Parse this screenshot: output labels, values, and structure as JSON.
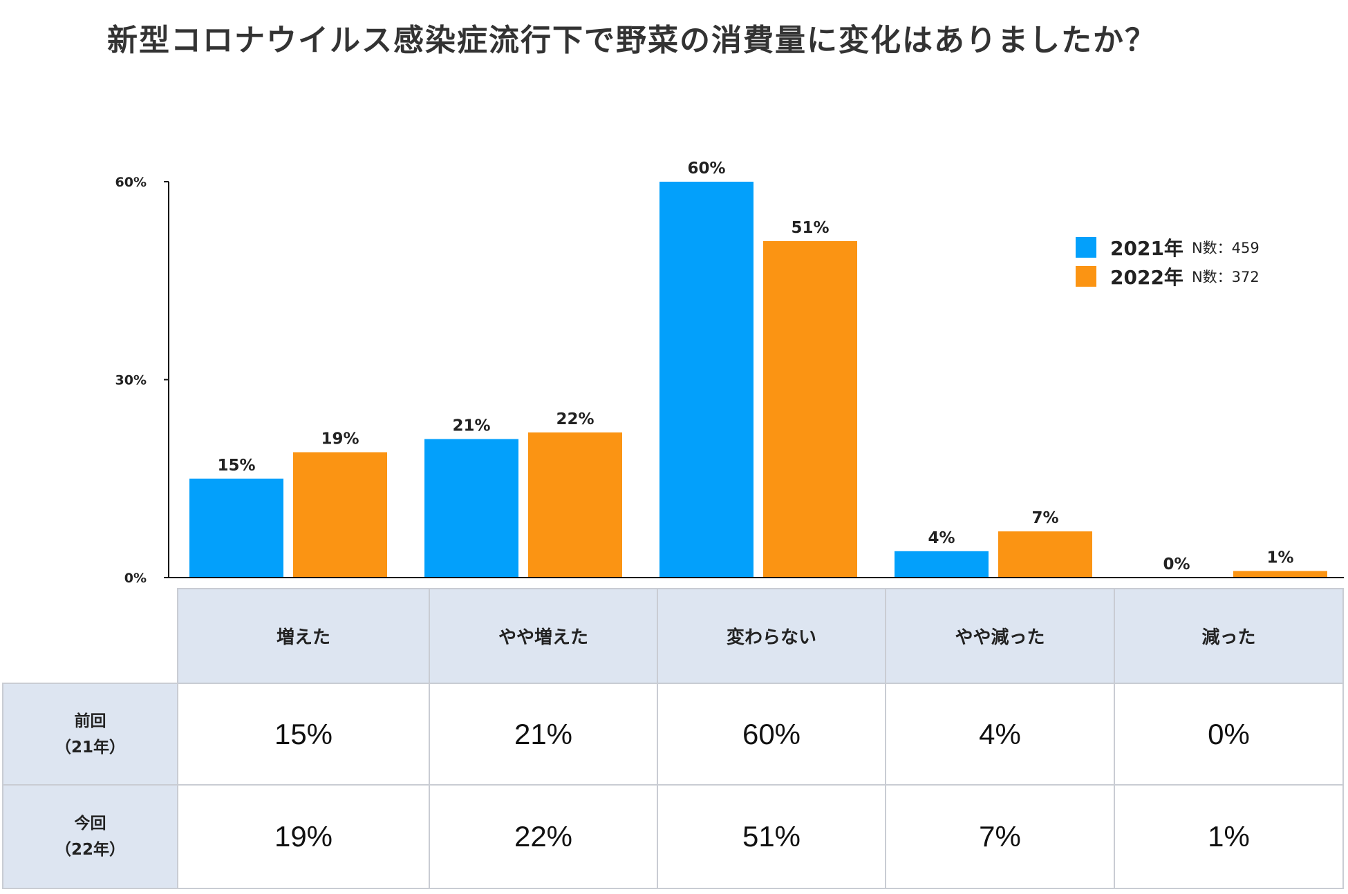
{
  "title": "新型コロナウイルス感染症流行下で野菜の消費量に変化はありましたか？",
  "colors": {
    "series_2021": "#03a0fb",
    "series_2022": "#fb9413",
    "table_header_bg": "#dde5f1"
  },
  "chart_data": {
    "type": "bar",
    "title": "新型コロナウイルス感染症流行下で野菜の消費量に変化はありましたか？",
    "categories": [
      "増えた",
      "やや増えた",
      "変わらない",
      "やや減った",
      "減った"
    ],
    "series": [
      {
        "name": "2021年",
        "values": [
          15,
          21,
          60,
          4,
          0
        ],
        "labels": [
          "15%",
          "21%",
          "60%",
          "4%",
          "0%"
        ]
      },
      {
        "name": "2022年",
        "values": [
          19,
          22,
          51,
          7,
          1
        ],
        "labels": [
          "19%",
          "22%",
          "51%",
          "7%",
          "1%"
        ]
      }
    ],
    "ylim": [
      0,
      60
    ],
    "yticks": [
      "0%",
      "30%",
      "60%"
    ],
    "ytick_values": [
      0,
      30,
      60
    ],
    "legend_position": "top-right",
    "grid": false
  },
  "legend": {
    "items": [
      {
        "year": "2021年",
        "n": "N数：459"
      },
      {
        "year": "2022年",
        "n": "N数：372"
      }
    ]
  },
  "table": {
    "headers": [
      "増えた",
      "やや増えた",
      "変わらない",
      "やや減った",
      "減った"
    ],
    "rows": [
      {
        "label_line1": "前回",
        "label_line2": "（21年）",
        "values": [
          "15%",
          "21%",
          "60%",
          "4%",
          "0%"
        ]
      },
      {
        "label_line1": "今回",
        "label_line2": "（22年）",
        "values": [
          "19%",
          "22%",
          "51%",
          "7%",
          "1%"
        ]
      }
    ]
  }
}
